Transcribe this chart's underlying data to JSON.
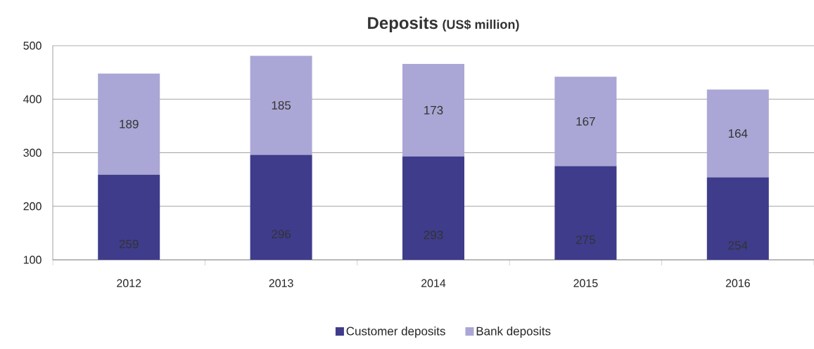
{
  "chart_data": {
    "type": "bar",
    "title": "Deposits",
    "subtitle": "(US$ million)",
    "stacked": true,
    "categories": [
      "2012",
      "2013",
      "2014",
      "2015",
      "2016"
    ],
    "series": [
      {
        "name": "Customer deposits",
        "color": "#3f3c8c",
        "values": [
          259,
          296,
          293,
          275,
          254
        ]
      },
      {
        "name": "Bank deposits",
        "color": "#aaa7d6",
        "values": [
          189,
          185,
          173,
          167,
          164
        ]
      }
    ],
    "ylim": [
      100,
      500
    ],
    "yticks": [
      100,
      200,
      300,
      400,
      500
    ],
    "grid": "y",
    "legend": "bottom",
    "data_labels": true
  }
}
